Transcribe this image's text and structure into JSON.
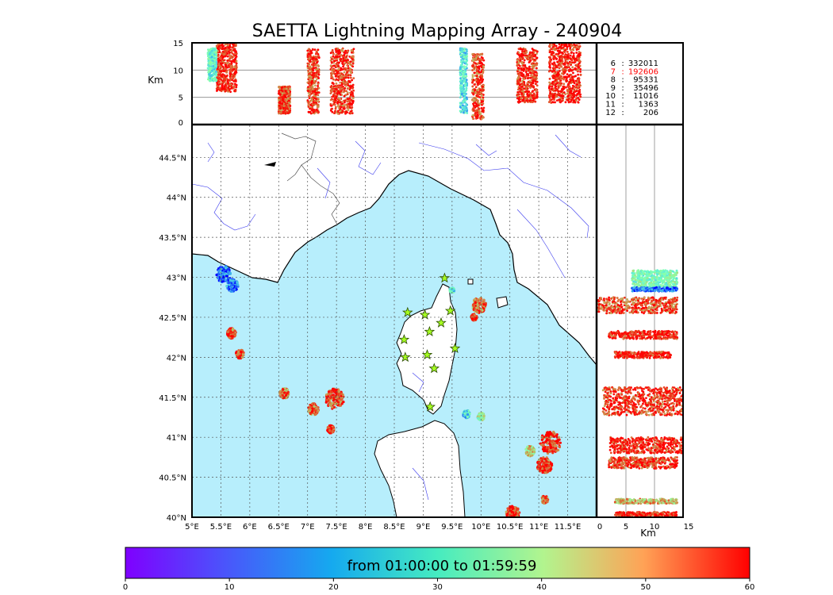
{
  "chart_data": {
    "type": "scatter",
    "title": "SAETTA Lightning Mapping Array - 240904",
    "panels": {
      "altitude_lon": {
        "y_label": "Km",
        "y_ticks": [
          "0",
          "5",
          "10",
          "15"
        ],
        "ylim": [
          0,
          15
        ]
      },
      "map": {
        "xlim": [
          5,
          12.0
        ],
        "ylim": [
          40,
          45.0
        ],
        "x_ticks": [
          "5°E",
          "5.5°E",
          "6°E",
          "6.5°E",
          "7°E",
          "7.5°E",
          "8°E",
          "8.5°E",
          "9°E",
          "9.5°E",
          "10°E",
          "10.5°E",
          "11°E",
          "11.5°E"
        ],
        "x_tick_values": [
          5,
          5.5,
          6,
          6.5,
          7,
          7.5,
          8,
          8.5,
          9,
          9.5,
          10,
          10.5,
          11,
          11.5
        ],
        "y_ticks": [
          "40°N",
          "40.5°N",
          "41°N",
          "41.5°N",
          "42°N",
          "42.5°N",
          "43°N",
          "43.5°N",
          "44°N",
          "44.5°N"
        ],
        "y_tick_values": [
          40,
          40.5,
          41,
          41.5,
          42,
          42.5,
          43,
          43.5,
          44,
          44.5
        ],
        "grid": true
      },
      "lat_altitude": {
        "x_label": "Km",
        "x_ticks": [
          "0",
          "5",
          "10",
          "15"
        ],
        "xlim": [
          0,
          15
        ]
      }
    },
    "station_counts": [
      {
        "station": "6",
        "count": "332011"
      },
      {
        "station": "7",
        "count": "192606",
        "highlight": "#ff0000"
      },
      {
        "station": "8",
        "count": "95331"
      },
      {
        "station": "9",
        "count": "35496"
      },
      {
        "station": "10",
        "count": "11016"
      },
      {
        "station": "11",
        "count": "1363"
      },
      {
        "station": "12",
        "count": "206"
      }
    ],
    "stations": [
      {
        "lon": 9.37,
        "lat": 42.99
      },
      {
        "lon": 8.73,
        "lat": 42.56
      },
      {
        "lon": 9.03,
        "lat": 42.53
      },
      {
        "lon": 9.47,
        "lat": 42.58
      },
      {
        "lon": 9.31,
        "lat": 42.43
      },
      {
        "lon": 9.11,
        "lat": 42.32
      },
      {
        "lon": 8.67,
        "lat": 42.22
      },
      {
        "lon": 9.55,
        "lat": 42.11
      },
      {
        "lon": 8.69,
        "lat": 42.0
      },
      {
        "lon": 9.07,
        "lat": 42.03
      },
      {
        "lon": 9.19,
        "lat": 41.86
      },
      {
        "lon": 9.12,
        "lat": 41.38
      }
    ],
    "lightning_clusters": [
      {
        "lon": 5.55,
        "lat": 43.04,
        "r": 0.13,
        "t": 8
      },
      {
        "lon": 5.7,
        "lat": 42.9,
        "r": 0.1,
        "t": 8
      },
      {
        "lon": 5.68,
        "lat": 42.3,
        "r": 0.08,
        "t": 55
      },
      {
        "lon": 5.83,
        "lat": 42.04,
        "r": 0.07,
        "t": 58
      },
      {
        "lon": 6.6,
        "lat": 41.55,
        "r": 0.08,
        "t": 52
      },
      {
        "lon": 7.47,
        "lat": 41.48,
        "r": 0.16,
        "t": 56
      },
      {
        "lon": 7.1,
        "lat": 41.35,
        "r": 0.09,
        "t": 52
      },
      {
        "lon": 7.4,
        "lat": 41.1,
        "r": 0.06,
        "t": 58
      },
      {
        "lon": 9.97,
        "lat": 42.65,
        "r": 0.12,
        "t": 52
      },
      {
        "lon": 9.88,
        "lat": 42.5,
        "r": 0.05,
        "t": 60
      },
      {
        "lon": 10.0,
        "lat": 41.26,
        "r": 0.06,
        "t": 35
      },
      {
        "lon": 9.75,
        "lat": 41.29,
        "r": 0.06,
        "t": 20
      },
      {
        "lon": 11.2,
        "lat": 40.93,
        "r": 0.18,
        "t": 58
      },
      {
        "lon": 10.85,
        "lat": 40.83,
        "r": 0.08,
        "t": 42
      },
      {
        "lon": 11.1,
        "lat": 40.65,
        "r": 0.13,
        "t": 56
      },
      {
        "lon": 10.55,
        "lat": 40.05,
        "r": 0.12,
        "t": 58
      },
      {
        "lon": 11.1,
        "lat": 40.22,
        "r": 0.06,
        "t": 52
      },
      {
        "lon": 9.5,
        "lat": 42.84,
        "r": 0.04,
        "t": 20
      }
    ],
    "altitude_profile_clusters": [
      {
        "lon": 5.6,
        "alt_min": 6,
        "alt_max": 15,
        "w": 0.35,
        "t": 58
      },
      {
        "lon": 5.35,
        "alt_min": 8,
        "alt_max": 14,
        "w": 0.15,
        "t": 25
      },
      {
        "lon": 6.6,
        "alt_min": 2,
        "alt_max": 7,
        "w": 0.2,
        "t": 55
      },
      {
        "lon": 7.1,
        "alt_min": 2,
        "alt_max": 14,
        "w": 0.2,
        "t": 56
      },
      {
        "lon": 7.6,
        "alt_min": 2,
        "alt_max": 14,
        "w": 0.4,
        "t": 57
      },
      {
        "lon": 9.7,
        "alt_min": 2,
        "alt_max": 14,
        "w": 0.12,
        "t": 22
      },
      {
        "lon": 9.95,
        "alt_min": 1,
        "alt_max": 13,
        "w": 0.2,
        "t": 55
      },
      {
        "lon": 10.8,
        "alt_min": 4,
        "alt_max": 14,
        "w": 0.35,
        "t": 57
      },
      {
        "lon": 11.45,
        "alt_min": 4,
        "alt_max": 15,
        "w": 0.55,
        "t": 59
      }
    ],
    "latitude_profile_clusters": [
      {
        "lat": 42.98,
        "alt_min": 6,
        "alt_max": 14,
        "h": 0.22,
        "t": 30
      },
      {
        "lat": 42.85,
        "alt_min": 6,
        "alt_max": 14,
        "h": 0.05,
        "t": 8
      },
      {
        "lat": 42.65,
        "alt_min": 0,
        "alt_max": 14,
        "h": 0.2,
        "t": 55
      },
      {
        "lat": 42.28,
        "alt_min": 2,
        "alt_max": 14,
        "h": 0.1,
        "t": 59
      },
      {
        "lat": 42.03,
        "alt_min": 3,
        "alt_max": 13,
        "h": 0.08,
        "t": 59
      },
      {
        "lat": 41.45,
        "alt_min": 1,
        "alt_max": 15,
        "h": 0.35,
        "t": 57
      },
      {
        "lat": 40.9,
        "alt_min": 2,
        "alt_max": 15,
        "h": 0.2,
        "t": 59
      },
      {
        "lat": 40.68,
        "alt_min": 2,
        "alt_max": 14,
        "h": 0.14,
        "t": 56
      },
      {
        "lat": 40.2,
        "alt_min": 3,
        "alt_max": 14,
        "h": 0.06,
        "t": 45
      },
      {
        "lat": 40.04,
        "alt_min": 3,
        "alt_max": 14,
        "h": 0.05,
        "t": 59
      }
    ],
    "colorbar": {
      "label": "from 01:00:00 to 01:59:59",
      "ticks": [
        "0",
        "10",
        "20",
        "30",
        "40",
        "50",
        "60"
      ],
      "range": [
        0,
        60
      ]
    },
    "colors": {
      "sea": "#b7eefc",
      "land": "#ffffff",
      "rivers": "#3a3aee",
      "station_marker": "#a6ff21"
    }
  }
}
